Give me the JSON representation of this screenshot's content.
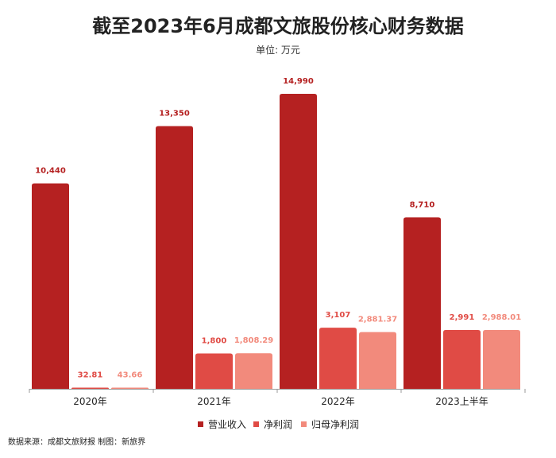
{
  "footer": {
    "source": "数据来源：成都文旅财报  制图：新旅界"
  },
  "chart_data": {
    "type": "bar",
    "title": "截至2023年6月成都文旅股份核心财务数据",
    "subtitle": "单位: 万元",
    "categories": [
      "2020年",
      "2021年",
      "2022年",
      "2023上半年"
    ],
    "series": [
      {
        "name": "营业收入",
        "color": "#b52121",
        "label_color": "#b52121",
        "values": [
          10440,
          13350,
          14990,
          8710
        ],
        "labels": [
          "10,440",
          "13,350",
          "14,990",
          "8,710"
        ]
      },
      {
        "name": "净利润",
        "color": "#e04b45",
        "label_color": "#e04b45",
        "values": [
          32.81,
          1800,
          3107,
          2991
        ],
        "labels": [
          "32.81",
          "1,800",
          "3,107",
          "2,991"
        ]
      },
      {
        "name": "归母净利润",
        "color": "#f28a7c",
        "label_color": "#f28a7c",
        "values": [
          43.66,
          1808.29,
          2881.37,
          2988.01
        ],
        "labels": [
          "43.66",
          "1,808.29",
          "2,881.37",
          "2,988.01"
        ]
      }
    ],
    "ylim": [
      0,
      16000
    ],
    "grid": false,
    "legend": "bottom"
  }
}
